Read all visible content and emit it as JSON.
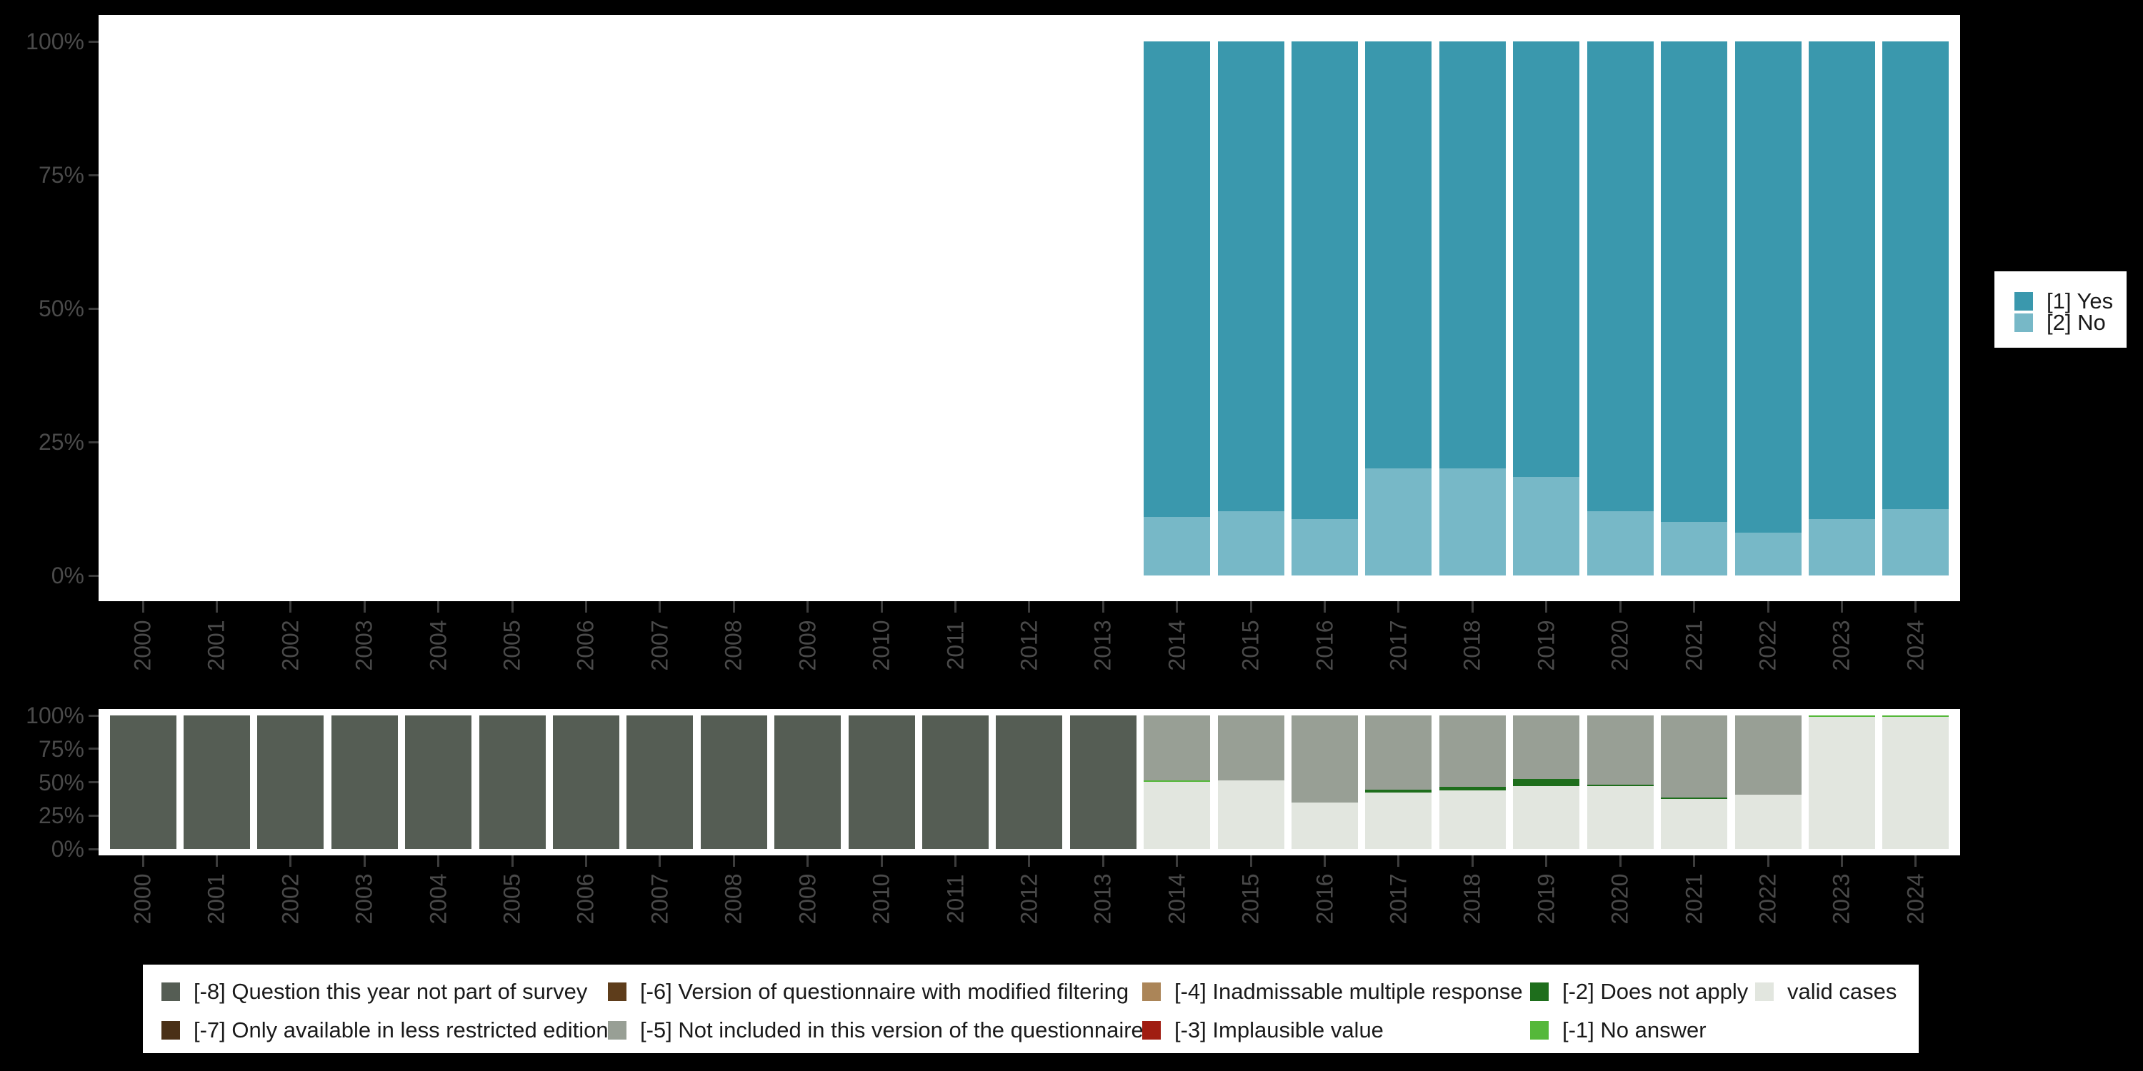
{
  "colors": {
    "page_background": "#000000",
    "panel_background": "#ffffff",
    "axis_text": "#4a4a4a",
    "axis_tick": "#3d3d3d",
    "legend_text": "#1a1a1a",
    "yes": "#3a98ad",
    "no": "#77b8c7",
    "m8": "#555d54",
    "m7": "#4a3017",
    "m6": "#5e3d1b",
    "m5": "#989f95",
    "m4": "#ab8558",
    "m3": "#a01d12",
    "m2": "#1e6e1c",
    "m1": "#55b83a",
    "valid": "#e2e6df"
  },
  "axes": {
    "y_tick_labels": [
      "0%",
      "25%",
      "50%",
      "75%",
      "100%"
    ],
    "y_tick_percents": [
      0,
      25,
      50,
      75,
      100
    ],
    "x_tick_labels": [
      "2000",
      "2001",
      "2002",
      "2003",
      "2004",
      "2005",
      "2006",
      "2007",
      "2008",
      "2009",
      "2010",
      "2011",
      "2012",
      "2013",
      "2014",
      "2015",
      "2016",
      "2017",
      "2018",
      "2019",
      "2020",
      "2021",
      "2022",
      "2023",
      "2024"
    ]
  },
  "legend_response": {
    "items": [
      {
        "label": "[1] Yes",
        "color_key": "yes"
      },
      {
        "label": "[2] No",
        "color_key": "no"
      }
    ]
  },
  "legend_missing": {
    "columns": [
      [
        {
          "label": "[-8] Question this year not part of survey",
          "color_key": "m8"
        },
        {
          "label": "[-7] Only available in less restricted edition",
          "color_key": "m7"
        }
      ],
      [
        {
          "label": "[-6] Version of questionnaire with modified filtering",
          "color_key": "m6"
        },
        {
          "label": "[-5] Not included in this version of the questionnaire",
          "color_key": "m5"
        }
      ],
      [
        {
          "label": "[-4] Inadmissable multiple response",
          "color_key": "m4"
        },
        {
          "label": "[-3] Implausible value",
          "color_key": "m3"
        }
      ],
      [
        {
          "label": "[-2] Does not apply",
          "color_key": "m2"
        },
        {
          "label": "[-1] No answer",
          "color_key": "m1"
        }
      ],
      [
        {
          "label": "valid cases",
          "color_key": "valid"
        }
      ]
    ]
  },
  "chart_data": [
    {
      "id": "responses",
      "type": "bar",
      "stacked": true,
      "stack_order": "first-on-top",
      "title": "",
      "xlabel": "",
      "ylabel": "",
      "ylim": [
        0,
        100
      ],
      "grid": false,
      "legend_position": "right",
      "categories": [
        "2000",
        "2001",
        "2002",
        "2003",
        "2004",
        "2005",
        "2006",
        "2007",
        "2008",
        "2009",
        "2010",
        "2011",
        "2012",
        "2013",
        "2014",
        "2015",
        "2016",
        "2017",
        "2018",
        "2019",
        "2020",
        "2021",
        "2022",
        "2023",
        "2024"
      ],
      "series": [
        {
          "name": "[1] Yes",
          "color_key": "yes",
          "values": [
            null,
            null,
            null,
            null,
            null,
            null,
            null,
            null,
            null,
            null,
            null,
            null,
            null,
            null,
            89,
            88,
            89.5,
            80,
            80,
            81.5,
            88,
            90,
            92,
            89.5,
            87.5
          ]
        },
        {
          "name": "[2] No",
          "color_key": "no",
          "values": [
            null,
            null,
            null,
            null,
            null,
            null,
            null,
            null,
            null,
            null,
            null,
            null,
            null,
            null,
            11,
            12,
            10.5,
            20,
            20,
            18.5,
            12,
            10,
            8,
            10.5,
            12.5
          ]
        }
      ]
    },
    {
      "id": "missing-values",
      "type": "bar",
      "stacked": true,
      "stack_order": "first-on-top",
      "title": "",
      "xlabel": "",
      "ylabel": "",
      "ylim": [
        0,
        100
      ],
      "grid": false,
      "legend_position": "bottom",
      "categories": [
        "2000",
        "2001",
        "2002",
        "2003",
        "2004",
        "2005",
        "2006",
        "2007",
        "2008",
        "2009",
        "2010",
        "2011",
        "2012",
        "2013",
        "2014",
        "2015",
        "2016",
        "2017",
        "2018",
        "2019",
        "2020",
        "2021",
        "2022",
        "2023",
        "2024"
      ],
      "series": [
        {
          "name": "[-8] Question this year not part of survey",
          "color_key": "m8",
          "values": [
            100,
            100,
            100,
            100,
            100,
            100,
            100,
            100,
            100,
            100,
            100,
            100,
            100,
            100,
            0,
            0,
            0,
            0,
            0,
            0,
            0,
            0,
            0,
            0,
            0
          ]
        },
        {
          "name": "[-5] Not included in this version of the questionnaire",
          "color_key": "m5",
          "values": [
            0,
            0,
            0,
            0,
            0,
            0,
            0,
            0,
            0,
            0,
            0,
            0,
            0,
            0,
            48.5,
            48.5,
            65.5,
            55.5,
            53.5,
            47.5,
            52,
            61.5,
            59.5,
            0,
            0
          ]
        },
        {
          "name": "[-2] Does not apply",
          "color_key": "m2",
          "values": [
            0,
            0,
            0,
            0,
            0,
            0,
            0,
            0,
            0,
            0,
            0,
            0,
            0,
            0,
            0,
            0,
            0,
            2,
            2.5,
            5.5,
            1,
            1,
            0,
            0,
            0
          ]
        },
        {
          "name": "[-1] No answer",
          "color_key": "m1",
          "values": [
            0,
            0,
            0,
            0,
            0,
            0,
            0,
            0,
            0,
            0,
            0,
            0,
            0,
            0,
            1,
            0,
            0,
            0,
            0,
            0,
            0,
            0,
            0,
            1,
            1
          ]
        },
        {
          "name": "valid cases",
          "color_key": "valid",
          "values": [
            0,
            0,
            0,
            0,
            0,
            0,
            0,
            0,
            0,
            0,
            0,
            0,
            0,
            0,
            50.5,
            51.5,
            34.5,
            42.5,
            44,
            47,
            47,
            37.5,
            40.5,
            99,
            99
          ]
        }
      ]
    }
  ]
}
